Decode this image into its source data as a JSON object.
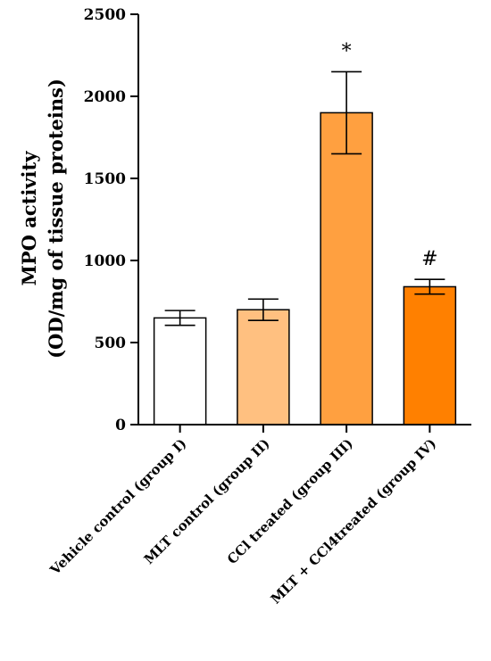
{
  "chart_data": {
    "type": "bar",
    "ylabel_line1": "MPO activity",
    "ylabel_line2": "(OD/mg of tissue proteins)",
    "ylim": [
      0,
      2500
    ],
    "yticks": [
      "0",
      "500",
      "1000",
      "1500",
      "2000",
      "2500"
    ],
    "ytick_values": [
      0,
      500,
      1000,
      1500,
      2000,
      2500
    ],
    "categories": [
      "Vehicle control (group I)",
      "MLT control (group II)",
      "CCl  treated (group III)",
      "MLT + CCl4treated (group IV)"
    ],
    "values": [
      650,
      700,
      1900,
      840
    ],
    "errors": [
      45,
      65,
      250,
      45
    ],
    "annotations": [
      "",
      "",
      "*",
      "#"
    ],
    "colors": [
      "#ffffff",
      "#ffc080",
      "#ffa040",
      "#ff8000"
    ],
    "grid": false,
    "legend": "none"
  }
}
